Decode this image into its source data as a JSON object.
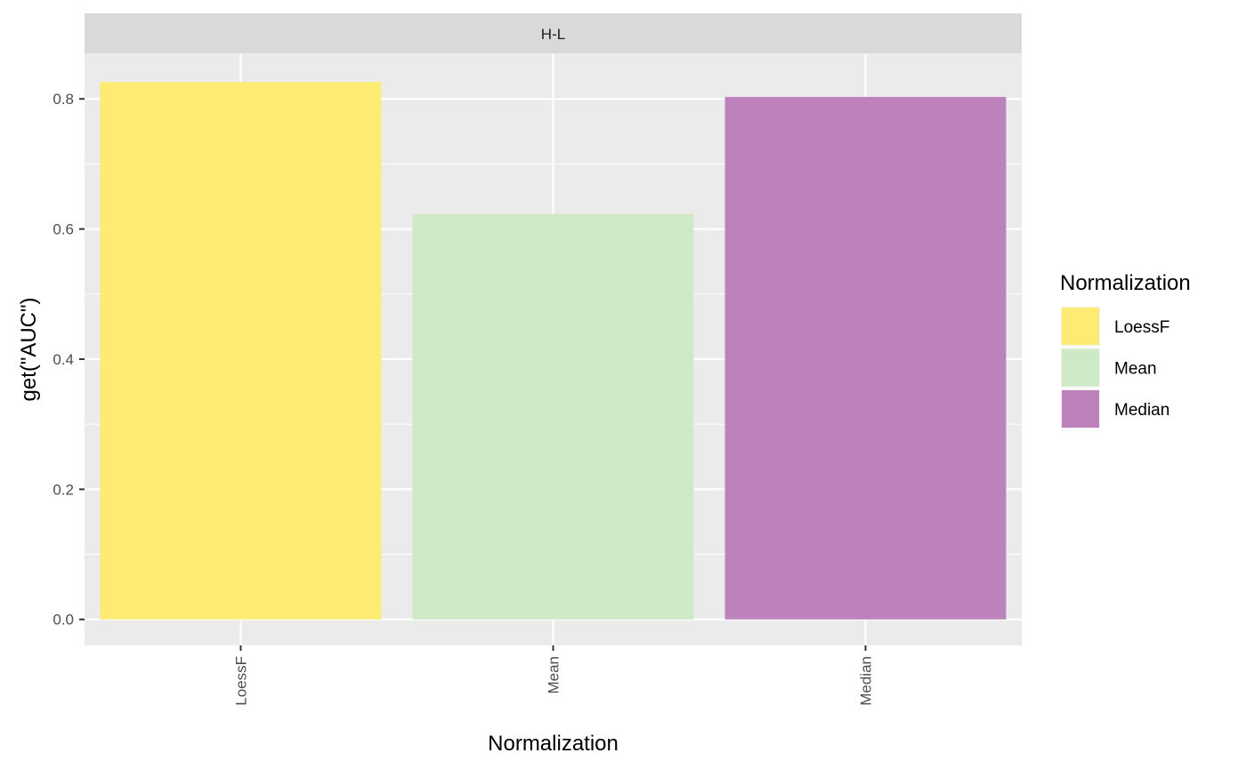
{
  "chart_data": {
    "type": "bar",
    "facet_label": "H-L",
    "categories": [
      "LoessF",
      "Mean",
      "Median"
    ],
    "values": [
      0.826,
      0.623,
      0.803
    ],
    "colors": [
      "#FEEB73",
      "#CDE9C6",
      "#BD82BC"
    ],
    "xlabel": "Normalization",
    "ylabel": "get(\"AUC\")",
    "ylim": [
      -0.04,
      0.87
    ],
    "yticks": [
      0.0,
      0.2,
      0.4,
      0.6,
      0.8
    ],
    "ytick_labels": [
      "0.0",
      "0.2",
      "0.4",
      "0.6",
      "0.8"
    ],
    "grid": true,
    "legend": {
      "title": "Normalization",
      "placement": "right",
      "entries": [
        "LoessF",
        "Mean",
        "Median"
      ]
    }
  }
}
